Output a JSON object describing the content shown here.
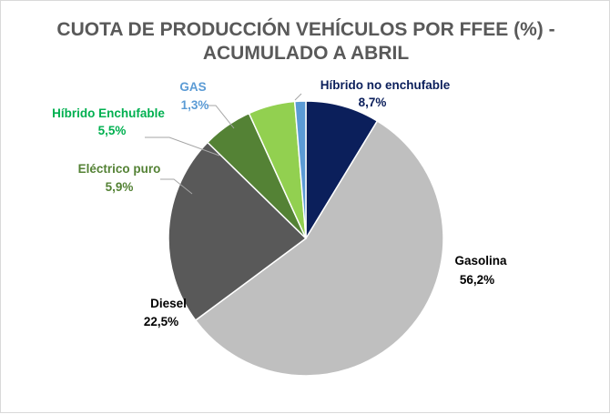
{
  "chart_data": {
    "type": "pie",
    "title": "CUOTA DE PRODUCCIÓN VEHÍCULOS POR FFEE (%) -",
    "subtitle": "ACUMULADO A ABRIL",
    "slices": [
      {
        "name": "Híbrido no enchufable",
        "value": 8.7,
        "value_label": "8,7%",
        "color": "#0b1f5b",
        "label_color": "#0b1f5b"
      },
      {
        "name": "Gasolina",
        "value": 56.2,
        "value_label": "56,2%",
        "color": "#bfbfbf",
        "label_color": "#000000"
      },
      {
        "name": "Diesel",
        "value": 22.5,
        "value_label": "22,5%",
        "color": "#595959",
        "label_color": "#000000"
      },
      {
        "name": "Eléctrico puro",
        "value": 5.9,
        "value_label": "5,9%",
        "color": "#548235",
        "label_color": "#548235"
      },
      {
        "name": "Híbrido Enchufable",
        "value": 5.5,
        "value_label": "5,5%",
        "color": "#92d050",
        "label_color": "#00b050"
      },
      {
        "name": "GAS",
        "value": 1.3,
        "value_label": "1,3%",
        "color": "#5b9bd5",
        "label_color": "#5b9bd5"
      }
    ],
    "legend": "none"
  }
}
